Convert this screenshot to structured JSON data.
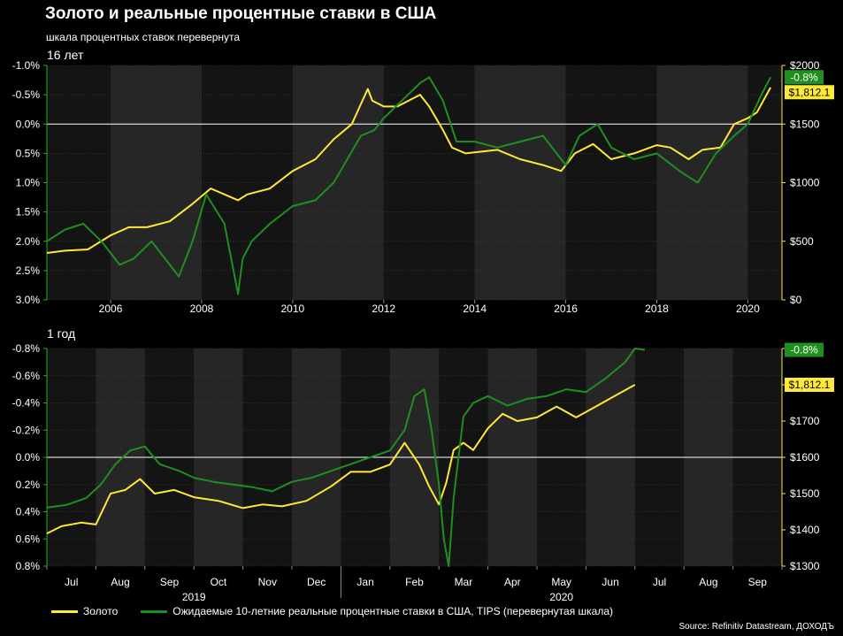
{
  "header": {
    "title": "Золото и реальные процентные ставки в США",
    "subtitle": "шкала процентных ставок перевернута"
  },
  "legend": {
    "gold_label": "Золото",
    "rates_label": "Ожидаемые 10-летние реальные процентные ставки в США, TIPS (перевернутая шкала)"
  },
  "source": "Source: Refinitiv Datastream, ДОХОДЪ",
  "colors": {
    "gold": "#ffe838",
    "rates": "#1f8f1f",
    "rates_axis": "#22b022",
    "background": "#000000",
    "plot_band": "#262626"
  },
  "chart_data": [
    {
      "type": "line",
      "panel_label": "16 лет",
      "x_type": "year",
      "x_range": [
        2004.6,
        2020.75
      ],
      "x_ticks": [
        2006,
        2008,
        2010,
        2012,
        2014,
        2016,
        2018,
        2020
      ],
      "x_tick_labels": [
        "2006",
        "2008",
        "2010",
        "2012",
        "2014",
        "2016",
        "2018",
        "2020"
      ],
      "y_left": {
        "label": "",
        "range_inverted": [
          -1.0,
          3.0
        ],
        "ticks": [
          -1.0,
          -0.5,
          0.0,
          0.5,
          1.0,
          1.5,
          2.0,
          2.5,
          3.0
        ],
        "tick_labels": [
          "-1.0%",
          "-0.5%",
          "0.0%",
          "0.5%",
          "1.0%",
          "1.5%",
          "2.0%",
          "2.5%",
          "3.0%"
        ]
      },
      "y_right": {
        "label": "",
        "range": [
          0,
          2000
        ],
        "ticks": [
          0,
          500,
          1000,
          1500,
          2000
        ],
        "tick_labels": [
          "$0",
          "$500",
          "$1000",
          "$1500",
          "$2000"
        ]
      },
      "grid": true,
      "zero_line": 0.0,
      "series": [
        {
          "name": "Золото",
          "axis": "right",
          "x": [
            2004.6,
            2005.0,
            2005.5,
            2006.0,
            2006.4,
            2006.8,
            2007.3,
            2007.8,
            2008.2,
            2008.8,
            2009.0,
            2009.5,
            2010.0,
            2010.5,
            2010.9,
            2011.3,
            2011.65,
            2011.75,
            2012.0,
            2012.3,
            2012.8,
            2013.0,
            2013.3,
            2013.5,
            2013.8,
            2014.5,
            2015.0,
            2015.5,
            2015.9,
            2016.2,
            2016.6,
            2017.0,
            2017.5,
            2018.0,
            2018.3,
            2018.7,
            2019.0,
            2019.4,
            2019.7,
            2020.0,
            2020.2,
            2020.5
          ],
          "values": [
            400,
            420,
            430,
            550,
            620,
            620,
            670,
            820,
            950,
            850,
            900,
            950,
            1100,
            1200,
            1370,
            1500,
            1800,
            1700,
            1650,
            1650,
            1750,
            1650,
            1450,
            1300,
            1250,
            1280,
            1200,
            1150,
            1100,
            1250,
            1330,
            1200,
            1250,
            1320,
            1300,
            1200,
            1280,
            1300,
            1500,
            1550,
            1600,
            1812.1
          ]
        },
        {
          "name": "Ожидаемые 10-летние реальные процентные ставки в США, TIPS (перевернутая шкала)",
          "axis": "left",
          "x": [
            2004.6,
            2005.0,
            2005.4,
            2005.8,
            2006.2,
            2006.5,
            2006.9,
            2007.3,
            2007.5,
            2007.8,
            2008.1,
            2008.5,
            2008.8,
            2008.9,
            2009.1,
            2009.5,
            2010.0,
            2010.5,
            2010.9,
            2011.2,
            2011.5,
            2011.8,
            2012.0,
            2012.4,
            2012.8,
            2013.0,
            2013.3,
            2013.6,
            2014.0,
            2014.5,
            2015.0,
            2015.5,
            2016.0,
            2016.3,
            2016.7,
            2017.0,
            2017.5,
            2018.0,
            2018.5,
            2018.9,
            2019.3,
            2019.7,
            2020.0,
            2020.3,
            2020.5
          ],
          "values": [
            2.0,
            1.8,
            1.7,
            2.0,
            2.4,
            2.3,
            2.0,
            2.4,
            2.6,
            2.0,
            1.2,
            1.7,
            2.9,
            2.3,
            2.0,
            1.7,
            1.4,
            1.3,
            1.0,
            0.6,
            0.2,
            0.1,
            -0.1,
            -0.4,
            -0.7,
            -0.8,
            -0.4,
            0.3,
            0.3,
            0.4,
            0.3,
            0.2,
            0.7,
            0.2,
            0.0,
            0.4,
            0.6,
            0.5,
            0.8,
            1.0,
            0.5,
            0.2,
            0.0,
            -0.5,
            -0.8
          ]
        }
      ],
      "end_labels": {
        "gold": "$1,812.1",
        "rates": "-0.8%"
      }
    },
    {
      "type": "line",
      "panel_label": "1 год",
      "x_type": "month",
      "x_range": [
        0.0,
        15.0
      ],
      "x_tick_labels": [
        "Jul",
        "Aug",
        "Sep",
        "Oct",
        "Nov",
        "Dec",
        "Jan",
        "Feb",
        "Mar",
        "Apr",
        "May",
        "Jun",
        "Jul",
        "Aug",
        "Sep"
      ],
      "year_labels": [
        "2019",
        "2020"
      ],
      "y_left": {
        "label": "",
        "range_inverted": [
          -0.8,
          0.8
        ],
        "ticks": [
          -0.8,
          -0.6,
          -0.4,
          -0.2,
          0.0,
          0.2,
          0.4,
          0.6,
          0.8
        ],
        "tick_labels": [
          "-0.8%",
          "-0.6%",
          "-0.4%",
          "-0.2%",
          "0.0%",
          "0.2%",
          "0.4%",
          "0.6%",
          "0.8%"
        ]
      },
      "y_right": {
        "label": "",
        "range": [
          1300,
          1900
        ],
        "ticks": [
          1300,
          1400,
          1500,
          1600,
          1700,
          1800,
          1900
        ],
        "tick_labels": [
          "$1300",
          "$1400",
          "$1500",
          "$1600",
          "$1700",
          "$1800",
          "$1900"
        ]
      },
      "grid": true,
      "zero_line": 0.0,
      "series": [
        {
          "name": "Золото",
          "axis": "right",
          "x": [
            0.0,
            0.3,
            0.7,
            1.0,
            1.3,
            1.6,
            1.9,
            2.2,
            2.6,
            3.0,
            3.5,
            4.0,
            4.4,
            4.8,
            5.3,
            5.8,
            6.2,
            6.6,
            7.0,
            7.3,
            7.6,
            7.8,
            8.0,
            8.15,
            8.3,
            8.5,
            8.7,
            9.0,
            9.3,
            9.6,
            10.0,
            10.4,
            10.8,
            11.2,
            11.6,
            12.0
          ],
          "values": [
            1390,
            1410,
            1420,
            1415,
            1500,
            1510,
            1540,
            1500,
            1510,
            1490,
            1480,
            1460,
            1470,
            1465,
            1480,
            1520,
            1560,
            1560,
            1580,
            1640,
            1580,
            1520,
            1470,
            1530,
            1620,
            1640,
            1620,
            1680,
            1720,
            1700,
            1710,
            1740,
            1710,
            1740,
            1770,
            1800
          ]
        },
        {
          "name": "Ожидаемые 10-летние реальные процентные ставки в США, TIPS (перевернутая шкала)",
          "axis": "left",
          "x": [
            0.0,
            0.4,
            0.8,
            1.1,
            1.4,
            1.7,
            2.0,
            2.3,
            2.7,
            3.0,
            3.4,
            3.8,
            4.2,
            4.6,
            5.0,
            5.4,
            5.8,
            6.2,
            6.6,
            7.0,
            7.3,
            7.5,
            7.7,
            7.85,
            8.0,
            8.1,
            8.2,
            8.3,
            8.5,
            8.7,
            9.0,
            9.4,
            9.8,
            10.2,
            10.6,
            11.0,
            11.4,
            11.8,
            12.0,
            12.2
          ],
          "values": [
            0.37,
            0.35,
            0.3,
            0.2,
            0.05,
            -0.05,
            -0.08,
            0.05,
            0.1,
            0.15,
            0.18,
            0.2,
            0.22,
            0.25,
            0.18,
            0.15,
            0.1,
            0.05,
            0.0,
            -0.05,
            -0.2,
            -0.45,
            -0.5,
            -0.2,
            0.2,
            0.6,
            0.8,
            0.3,
            -0.3,
            -0.4,
            -0.45,
            -0.38,
            -0.43,
            -0.45,
            -0.5,
            -0.48,
            -0.58,
            -0.7,
            -0.8,
            -0.79
          ]
        }
      ],
      "end_labels": {
        "gold": "$1,812.1",
        "rates": "-0.8%"
      }
    }
  ]
}
